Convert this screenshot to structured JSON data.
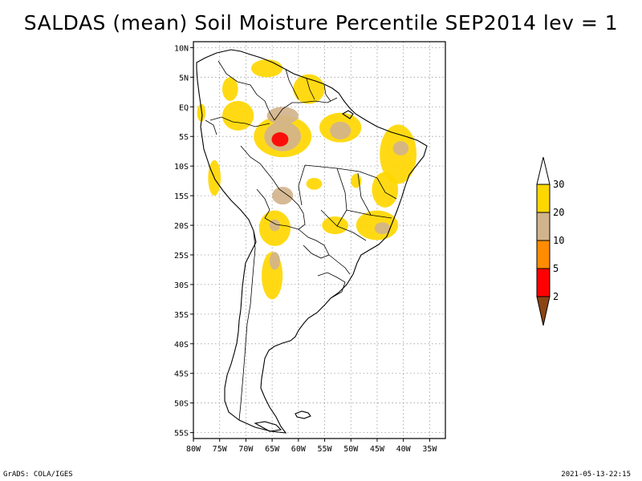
{
  "header": {
    "title": "SALDAS (mean) Soil Moisture Percentile SEP2014 lev = 1"
  },
  "map": {
    "lon_range": [
      -80,
      -32
    ],
    "lat_range": [
      -56,
      11
    ],
    "y_ticks": [
      {
        "lat": 10,
        "label": "10N"
      },
      {
        "lat": 5,
        "label": "5N"
      },
      {
        "lat": 0,
        "label": "EQ"
      },
      {
        "lat": -5,
        "label": "5S"
      },
      {
        "lat": -10,
        "label": "10S"
      },
      {
        "lat": -15,
        "label": "15S"
      },
      {
        "lat": -20,
        "label": "20S"
      },
      {
        "lat": -25,
        "label": "25S"
      },
      {
        "lat": -30,
        "label": "30S"
      },
      {
        "lat": -35,
        "label": "35S"
      },
      {
        "lat": -40,
        "label": "40S"
      },
      {
        "lat": -45,
        "label": "45S"
      },
      {
        "lat": -50,
        "label": "50S"
      },
      {
        "lat": -55,
        "label": "55S"
      }
    ],
    "x_ticks": [
      {
        "lon": -80,
        "label": "80W"
      },
      {
        "lon": -75,
        "label": "75W"
      },
      {
        "lon": -70,
        "label": "70W"
      },
      {
        "lon": -65,
        "label": "65W"
      },
      {
        "lon": -60,
        "label": "60W"
      },
      {
        "lon": -55,
        "label": "55W"
      },
      {
        "lon": -50,
        "label": "50W"
      },
      {
        "lon": -45,
        "label": "45W"
      },
      {
        "lon": -40,
        "label": "40W"
      },
      {
        "lon": -35,
        "label": "35W"
      }
    ],
    "colors": {
      "p2_5": "#ff0000",
      "p5_10": "#ff8c00",
      "p10_20": "#d2b48c",
      "p20_30": "#ffd700",
      "below_2": "#8b4513",
      "above_30": "#ffffff"
    },
    "features": [
      {
        "name": "amazon-dry-core",
        "class": "p2_5",
        "lon": -63.5,
        "lat": -5.5,
        "rlon": 1.6,
        "rlat": 1.2
      },
      {
        "name": "central-amazon",
        "class": "p10_20",
        "lon": -63.0,
        "lat": -5.0,
        "rlon": 3.5,
        "rlat": 2.5
      },
      {
        "name": "central-amazon-outer",
        "class": "p20_30",
        "lon": -63.0,
        "lat": -5.0,
        "rlon": 5.5,
        "rlat": 3.5
      },
      {
        "name": "northwest-amazon",
        "class": "p20_30",
        "lon": -71.5,
        "lat": -1.5,
        "rlon": 3.0,
        "rlat": 2.5
      },
      {
        "name": "negro-basin",
        "class": "p10_20",
        "lon": -63.0,
        "lat": -1.5,
        "rlon": 3.0,
        "rlat": 1.5
      },
      {
        "name": "guiana-shield",
        "class": "p20_30",
        "lon": -58.0,
        "lat": 3.0,
        "rlon": 3.0,
        "rlat": 2.5
      },
      {
        "name": "venezuela-north",
        "class": "p20_30",
        "lon": -66.0,
        "lat": 6.5,
        "rlon": 3.0,
        "rlat": 1.5
      },
      {
        "name": "para-east",
        "class": "p20_30",
        "lon": -52.0,
        "lat": -3.5,
        "rlon": 4.0,
        "rlat": 2.5
      },
      {
        "name": "para-east-core",
        "class": "p10_20",
        "lon": -52.0,
        "lat": -4.0,
        "rlon": 2.0,
        "rlat": 1.5
      },
      {
        "name": "northeast-brazil",
        "class": "p20_30",
        "lon": -41.0,
        "lat": -8.0,
        "rlon": 3.5,
        "rlat": 5.0
      },
      {
        "name": "northeast-brazil-core",
        "class": "p10_20",
        "lon": -40.5,
        "lat": -7.0,
        "rlon": 1.5,
        "rlat": 1.2
      },
      {
        "name": "bahia-west",
        "class": "p20_30",
        "lon": -43.5,
        "lat": -14.0,
        "rlon": 2.5,
        "rlat": 3.0
      },
      {
        "name": "goias",
        "class": "p20_30",
        "lon": -49.0,
        "lat": -12.5,
        "rlon": 1.0,
        "rlat": 1.2
      },
      {
        "name": "southeast-brazil",
        "class": "p20_30",
        "lon": -45.0,
        "lat": -20.0,
        "rlon": 4.0,
        "rlat": 2.5
      },
      {
        "name": "southeast-brazil-core",
        "class": "p10_20",
        "lon": -44.0,
        "lat": -20.5,
        "rlon": 1.5,
        "rlat": 1.0
      },
      {
        "name": "mato-grosso-south",
        "class": "p20_30",
        "lon": -53.0,
        "lat": -20.0,
        "rlon": 2.5,
        "rlat": 1.5
      },
      {
        "name": "bolivia-south",
        "class": "p20_30",
        "lon": -64.5,
        "lat": -20.5,
        "rlon": 3.0,
        "rlat": 3.0
      },
      {
        "name": "bolivia-south-core",
        "class": "p10_20",
        "lon": -64.5,
        "lat": -20.0,
        "rlon": 1.0,
        "rlat": 1.0
      },
      {
        "name": "bolivia-lowlands",
        "class": "p10_20",
        "lon": -63.0,
        "lat": -15.0,
        "rlon": 2.0,
        "rlat": 1.5
      },
      {
        "name": "north-argentina",
        "class": "p20_30",
        "lon": -65.0,
        "lat": -28.5,
        "rlon": 2.0,
        "rlat": 4.0
      },
      {
        "name": "north-argentina-core",
        "class": "p10_20",
        "lon": -64.5,
        "lat": -26.0,
        "rlon": 1.0,
        "rlat": 1.5
      },
      {
        "name": "peru-coast",
        "class": "p20_30",
        "lon": -76.0,
        "lat": -12.0,
        "rlon": 1.2,
        "rlat": 3.0
      },
      {
        "name": "ecuador",
        "class": "p20_30",
        "lon": -78.5,
        "lat": -1.0,
        "rlon": 0.8,
        "rlat": 1.5
      },
      {
        "name": "colombia-east",
        "class": "p20_30",
        "lon": -73.0,
        "lat": 3.0,
        "rlon": 1.5,
        "rlat": 2.0
      },
      {
        "name": "mato-grosso",
        "class": "p20_30",
        "lon": -57.0,
        "lat": -13.0,
        "rlon": 1.5,
        "rlat": 1.0
      }
    ]
  },
  "legend": {
    "labels": [
      "2",
      "5",
      "10",
      "20",
      "30"
    ]
  },
  "footer": {
    "left": "GrADS: COLA/IGES",
    "right": "2021-05-13-22:15"
  }
}
